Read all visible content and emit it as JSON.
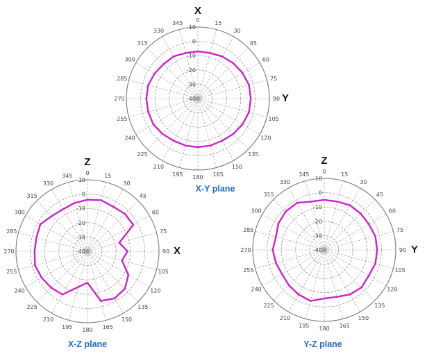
{
  "colors": {
    "trace": "#CC22CC",
    "caption": "#1F6FC5",
    "grid": "#888888",
    "spoke": "#9a9a9a"
  },
  "chart_data": [
    {
      "type": "polar-line",
      "title": "X-Y plane",
      "top_axis_label": "X",
      "right_axis_label": "Y",
      "angle_labels": [
        "0",
        "15",
        "30",
        "45",
        "60",
        "75",
        "90",
        "105",
        "120",
        "135",
        "150",
        "165",
        "180",
        "195",
        "210",
        "225",
        "240",
        "255",
        "270",
        "285",
        "300",
        "315",
        "330",
        "345"
      ],
      "radial_labels": [
        "10",
        "0",
        "-10",
        "-20",
        "-30",
        "-40"
      ],
      "rlim": [
        -40,
        10
      ],
      "series": [
        {
          "angles": [
            0,
            15,
            30,
            45,
            60,
            75,
            90,
            105,
            120,
            135,
            150,
            165,
            180,
            195,
            210,
            225,
            240,
            255,
            270,
            285,
            300,
            315,
            330,
            345
          ],
          "values": [
            -7,
            -7,
            -6,
            -5,
            -4,
            -3,
            -3,
            -3,
            -4,
            -5,
            -6,
            -6,
            -6,
            -6,
            -6,
            -5,
            -4,
            -4,
            -4,
            -4,
            -5,
            -6,
            -6,
            -7
          ]
        }
      ]
    },
    {
      "type": "polar-line",
      "title": "X-Z plane",
      "top_axis_label": "Z",
      "right_axis_label": "X",
      "angle_labels": [
        "0",
        "15",
        "30",
        "45",
        "60",
        "75",
        "90",
        "105",
        "120",
        "135",
        "150",
        "165",
        "180",
        "195",
        "210",
        "225",
        "240",
        "255",
        "270",
        "285",
        "300",
        "315",
        "330",
        "345"
      ],
      "radial_labels": [
        "10",
        "0",
        "-10",
        "-20",
        "-30",
        "-40"
      ],
      "rlim": [
        -40,
        10
      ],
      "series": [
        {
          "angles": [
            0,
            15,
            30,
            45,
            60,
            75,
            90,
            105,
            120,
            135,
            150,
            165,
            180,
            195,
            210,
            225,
            240,
            255,
            270,
            285,
            300,
            315,
            330,
            345
          ],
          "values": [
            -4,
            -3,
            -4,
            -3,
            -3,
            -17,
            -12,
            -15,
            -7,
            -3,
            -2,
            -4,
            -18,
            -14,
            -5,
            -4,
            -3,
            -2,
            -3,
            -3,
            -2,
            -5,
            -6,
            -5
          ]
        }
      ]
    },
    {
      "type": "polar-line",
      "title": "Y-Z plane",
      "top_axis_label": "Z",
      "right_axis_label": "Y",
      "angle_labels": [
        "0",
        "15",
        "30",
        "45",
        "60",
        "75",
        "90",
        "105",
        "120",
        "135",
        "150",
        "165",
        "180",
        "195",
        "210",
        "225",
        "240",
        "255",
        "270",
        "285",
        "300",
        "315",
        "330",
        "345"
      ],
      "radial_labels": [
        "10",
        "0",
        "-10",
        "-20",
        "-30",
        "-40"
      ],
      "rlim": [
        -40,
        10
      ],
      "series": [
        {
          "angles": [
            0,
            15,
            30,
            45,
            60,
            75,
            90,
            105,
            120,
            135,
            150,
            165,
            180,
            195,
            210,
            225,
            240,
            255,
            270,
            285,
            300,
            315,
            330,
            345
          ],
          "values": [
            -5,
            -5,
            -4,
            -4,
            -4,
            -3,
            -3,
            -3,
            -4,
            -3,
            -4,
            -6,
            -6,
            -3,
            -4,
            -5,
            -6,
            -5,
            -4,
            -5,
            -3,
            -2,
            -2,
            -5
          ]
        }
      ]
    }
  ]
}
